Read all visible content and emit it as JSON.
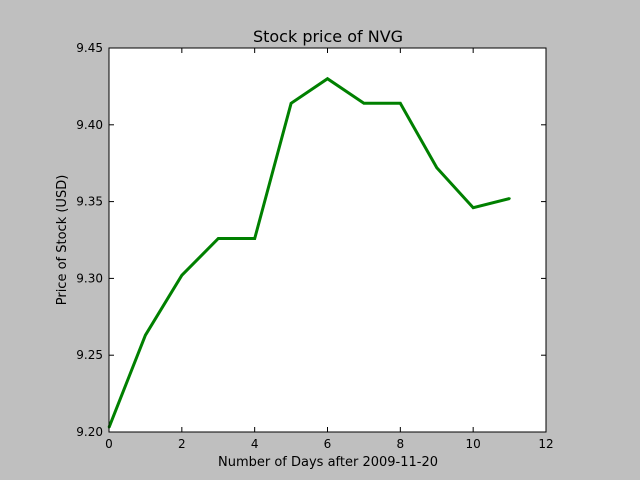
{
  "chart_data": {
    "type": "line",
    "title": "Stock price of NVG",
    "xlabel": "Number of Days after 2009-11-20",
    "ylabel": "Price of Stock (USD)",
    "xlim": [
      0,
      12
    ],
    "ylim": [
      9.2,
      9.45
    ],
    "xticks": [
      0,
      2,
      4,
      6,
      8,
      10,
      12
    ],
    "yticks": [
      9.2,
      9.25,
      9.3,
      9.35,
      9.4,
      9.45
    ],
    "grid": false,
    "series": [
      {
        "color": "#008000",
        "x": [
          0,
          1,
          2,
          3,
          4,
          5,
          6,
          7,
          8,
          9,
          10,
          11
        ],
        "y": [
          9.203,
          9.263,
          9.302,
          9.326,
          9.326,
          9.414,
          9.43,
          9.414,
          9.414,
          9.372,
          9.346,
          9.352
        ]
      }
    ]
  }
}
